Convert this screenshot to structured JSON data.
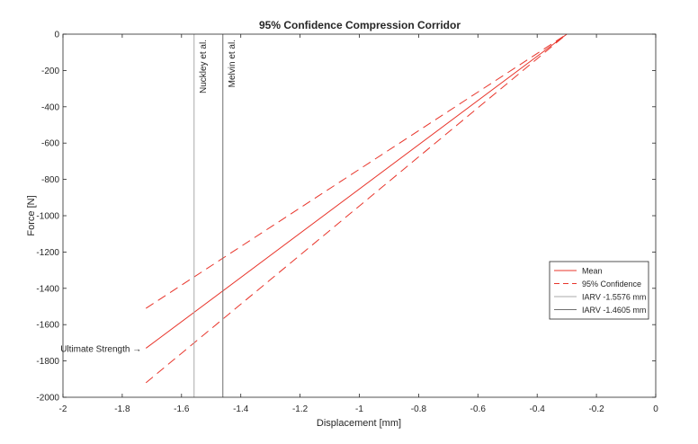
{
  "chart_data": {
    "type": "line",
    "title": "95% Confidence Compression Corridor",
    "xlabel": "Displacement [mm]",
    "ylabel": "Force [N]",
    "xlim": [
      -2,
      0
    ],
    "ylim": [
      -2000,
      0
    ],
    "xticks": [
      -2,
      -1.8,
      -1.6,
      -1.4,
      -1.2,
      -1,
      -0.8,
      -0.6,
      -0.4,
      -0.2,
      0
    ],
    "xtick_labels": [
      "-2",
      "-1.8",
      "-1.6",
      "-1.4",
      "-1.2",
      "-1",
      "-0.8",
      "-0.6",
      "-0.4",
      "-0.2",
      "0"
    ],
    "yticks": [
      0,
      -200,
      -400,
      -600,
      -800,
      -1000,
      -1200,
      -1400,
      -1600,
      -1800,
      -2000
    ],
    "ytick_labels": [
      "0",
      "-200",
      "-400",
      "-600",
      "-800",
      "-1000",
      "-1200",
      "-1400",
      "-1600",
      "-1800",
      "-2000"
    ],
    "grid": false,
    "legend_position": "right",
    "series": [
      {
        "name": "Mean",
        "style": "solid",
        "color": "#e8352b",
        "x": [
          -1.72,
          -0.3
        ],
        "y": [
          -1730,
          0
        ]
      },
      {
        "name": "95% Confidence",
        "style": "dashed",
        "color": "#e8352b",
        "x": [
          -1.72,
          -0.3
        ],
        "y": [
          -1510,
          0
        ]
      },
      {
        "name": "95% Confidence",
        "style": "dashed",
        "color": "#e8352b",
        "x": [
          -1.72,
          -0.3
        ],
        "y": [
          -1920,
          0
        ],
        "legend": false
      },
      {
        "name": "IARV -1.5576 mm",
        "style": "solid",
        "color": "#a8a8a8",
        "vertical_x": -1.5576
      },
      {
        "name": "IARV -1.4605 mm",
        "style": "solid",
        "color": "#6f6f6f",
        "vertical_x": -1.4605
      }
    ],
    "annotations": [
      {
        "text": "Nuckley et al.",
        "x": -1.5576,
        "rotation": -90
      },
      {
        "text": "Melvin et al.",
        "x": -1.4605,
        "rotation": -90
      },
      {
        "text": "Ultimate Strength",
        "arrow": "→",
        "x": -1.72,
        "y": -1730
      }
    ],
    "legend": [
      "Mean",
      "95% Confidence",
      "IARV -1.5576 mm",
      "IARV -1.4605 mm"
    ]
  }
}
